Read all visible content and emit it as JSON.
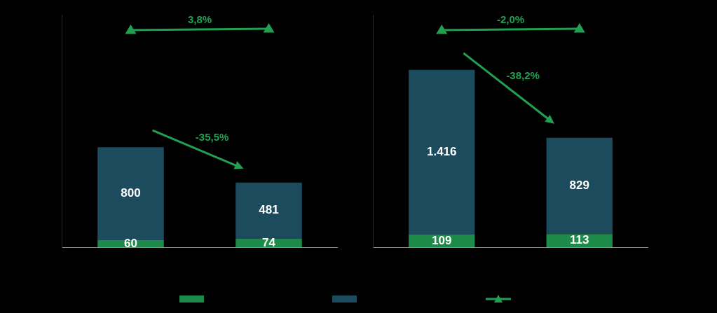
{
  "chart_data": [
    {
      "type": "bar",
      "stacked": true,
      "categories": [
        null,
        null
      ],
      "tick_labels": false,
      "data_labels": true,
      "ylim": [
        0,
        2000
      ],
      "legend": "bottom",
      "series": [
        {
          "color": "#1e8a4a",
          "values": [
            60,
            74
          ]
        },
        {
          "color": "#1d4b5e",
          "values": [
            800,
            481
          ]
        }
      ],
      "annotations": [
        {
          "text": "3,8%",
          "marker": "triangle",
          "color": "#22a052"
        },
        {
          "text": "-35,5%",
          "marker": "arrow",
          "color": "#22a052"
        }
      ]
    },
    {
      "type": "bar",
      "stacked": true,
      "categories": [
        null,
        null
      ],
      "tick_labels": false,
      "data_labels": true,
      "ylim": [
        0,
        2000
      ],
      "series": [
        {
          "color": "#1e8a4a",
          "values": [
            109,
            113
          ]
        },
        {
          "color": "#1d4b5e",
          "values": [
            1416,
            829
          ],
          "value_labels": [
            "1.416",
            "829"
          ]
        }
      ],
      "annotations": [
        {
          "text": "-2,0%",
          "marker": "triangle",
          "color": "#22a052"
        },
        {
          "text": "-38,2%",
          "marker": "arrow",
          "color": "#22a052"
        }
      ]
    }
  ]
}
